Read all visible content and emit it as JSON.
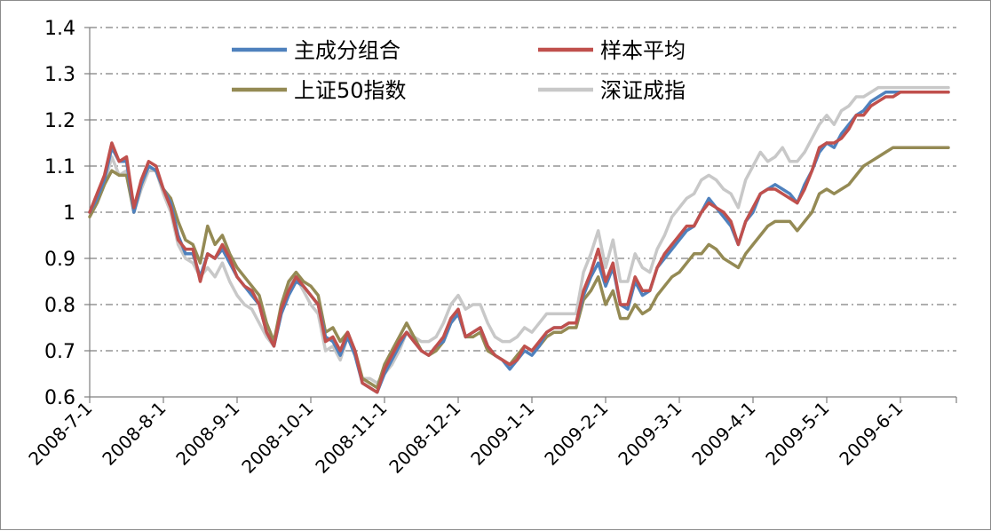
{
  "chart_data": {
    "type": "line",
    "title": "",
    "xlabel": "",
    "ylabel": "",
    "ylim": [
      0.6,
      1.4
    ],
    "yticks": [
      "0.6",
      "0.7",
      "0.8",
      "0.9",
      "1",
      "1.1",
      "1.2",
      "1.3",
      "1.4"
    ],
    "x_tick_labels": [
      "2008-7-1",
      "2008-8-1",
      "2008-9-1",
      "2008-10-1",
      "2008-11-1",
      "2008-12-1",
      "2009-1-1",
      "2009-2-1",
      "2009-3-1",
      "2009-4-1",
      "2009-5-1",
      "2009-6-1"
    ],
    "x_range": [
      0,
      11.65
    ],
    "grid": true,
    "legend_position": "top-center",
    "x": [
      0,
      0.1,
      0.2,
      0.3,
      0.4,
      0.5,
      0.6,
      0.7,
      0.8,
      0.9,
      1.0,
      1.1,
      1.2,
      1.3,
      1.4,
      1.5,
      1.6,
      1.7,
      1.8,
      1.9,
      2.0,
      2.1,
      2.2,
      2.3,
      2.4,
      2.5,
      2.6,
      2.7,
      2.8,
      2.9,
      3.0,
      3.1,
      3.2,
      3.3,
      3.4,
      3.5,
      3.6,
      3.7,
      3.8,
      3.9,
      4.0,
      4.1,
      4.2,
      4.3,
      4.4,
      4.5,
      4.6,
      4.7,
      4.8,
      4.9,
      5.0,
      5.1,
      5.2,
      5.3,
      5.4,
      5.5,
      5.6,
      5.7,
      5.8,
      5.9,
      6.0,
      6.1,
      6.2,
      6.3,
      6.4,
      6.5,
      6.6,
      6.7,
      6.8,
      6.9,
      7.0,
      7.1,
      7.2,
      7.3,
      7.4,
      7.5,
      7.6,
      7.7,
      7.8,
      7.9,
      8.0,
      8.1,
      8.2,
      8.3,
      8.4,
      8.5,
      8.6,
      8.7,
      8.8,
      8.9,
      9.0,
      9.1,
      9.2,
      9.3,
      9.4,
      9.5,
      9.6,
      9.7,
      9.8,
      9.9,
      10.0,
      10.1,
      10.2,
      10.3,
      10.4,
      10.5,
      10.6,
      10.7,
      10.8,
      10.9,
      11.0,
      11.1,
      11.2,
      11.3,
      11.4,
      11.5,
      11.6,
      11.65
    ],
    "series": [
      {
        "name": "主成分组合",
        "color": "#4f81bd",
        "values": [
          1.0,
          1.03,
          1.07,
          1.14,
          1.11,
          1.11,
          1.0,
          1.06,
          1.1,
          1.09,
          1.05,
          1.02,
          0.95,
          0.91,
          0.91,
          0.86,
          0.91,
          0.9,
          0.92,
          0.89,
          0.86,
          0.84,
          0.82,
          0.8,
          0.74,
          0.71,
          0.78,
          0.82,
          0.85,
          0.84,
          0.82,
          0.8,
          0.73,
          0.72,
          0.69,
          0.73,
          0.69,
          0.63,
          0.62,
          0.61,
          0.65,
          0.68,
          0.71,
          0.74,
          0.72,
          0.7,
          0.69,
          0.71,
          0.72,
          0.76,
          0.78,
          0.73,
          0.74,
          0.75,
          0.71,
          0.69,
          0.68,
          0.66,
          0.68,
          0.7,
          0.69,
          0.71,
          0.74,
          0.75,
          0.75,
          0.76,
          0.76,
          0.82,
          0.86,
          0.89,
          0.84,
          0.88,
          0.8,
          0.79,
          0.85,
          0.82,
          0.83,
          0.88,
          0.9,
          0.92,
          0.94,
          0.96,
          0.97,
          1.0,
          1.03,
          1.01,
          0.99,
          0.97,
          0.93,
          0.98,
          1.0,
          1.04,
          1.05,
          1.06,
          1.05,
          1.04,
          1.02,
          1.06,
          1.09,
          1.13,
          1.15,
          1.14,
          1.17,
          1.19,
          1.21,
          1.22,
          1.24,
          1.25,
          1.26,
          1.26,
          1.26,
          1.26,
          1.26,
          1.26,
          1.26,
          1.26,
          1.26,
          1.26
        ]
      },
      {
        "name": "样本平均",
        "color": "#c0504d",
        "values": [
          1.0,
          1.04,
          1.08,
          1.15,
          1.11,
          1.12,
          1.01,
          1.07,
          1.11,
          1.1,
          1.05,
          1.01,
          0.94,
          0.92,
          0.92,
          0.85,
          0.91,
          0.9,
          0.93,
          0.9,
          0.86,
          0.84,
          0.83,
          0.8,
          0.74,
          0.71,
          0.79,
          0.83,
          0.86,
          0.84,
          0.82,
          0.8,
          0.72,
          0.73,
          0.7,
          0.74,
          0.7,
          0.63,
          0.62,
          0.61,
          0.66,
          0.69,
          0.72,
          0.74,
          0.72,
          0.7,
          0.69,
          0.71,
          0.73,
          0.77,
          0.79,
          0.73,
          0.74,
          0.75,
          0.71,
          0.69,
          0.68,
          0.67,
          0.68,
          0.71,
          0.7,
          0.72,
          0.74,
          0.75,
          0.75,
          0.76,
          0.76,
          0.83,
          0.87,
          0.92,
          0.85,
          0.89,
          0.8,
          0.8,
          0.86,
          0.83,
          0.83,
          0.88,
          0.91,
          0.93,
          0.95,
          0.97,
          0.97,
          1.0,
          1.02,
          1.01,
          1.0,
          0.98,
          0.93,
          0.98,
          1.01,
          1.04,
          1.05,
          1.05,
          1.04,
          1.03,
          1.02,
          1.05,
          1.09,
          1.14,
          1.15,
          1.15,
          1.16,
          1.18,
          1.21,
          1.21,
          1.23,
          1.24,
          1.25,
          1.25,
          1.26,
          1.26,
          1.26,
          1.26,
          1.26,
          1.26,
          1.26,
          1.26
        ]
      },
      {
        "name": "上证50指数",
        "color": "#948a54",
        "values": [
          0.99,
          1.02,
          1.06,
          1.09,
          1.08,
          1.08,
          1.0,
          1.06,
          1.1,
          1.09,
          1.05,
          1.03,
          0.98,
          0.94,
          0.93,
          0.89,
          0.97,
          0.93,
          0.95,
          0.91,
          0.88,
          0.86,
          0.84,
          0.82,
          0.76,
          0.72,
          0.8,
          0.85,
          0.87,
          0.85,
          0.84,
          0.82,
          0.74,
          0.75,
          0.72,
          0.74,
          0.7,
          0.64,
          0.63,
          0.62,
          0.67,
          0.7,
          0.73,
          0.76,
          0.73,
          0.7,
          0.69,
          0.7,
          0.72,
          0.76,
          0.78,
          0.73,
          0.73,
          0.74,
          0.7,
          0.69,
          0.68,
          0.67,
          0.69,
          0.71,
          0.7,
          0.71,
          0.73,
          0.74,
          0.74,
          0.75,
          0.75,
          0.81,
          0.83,
          0.86,
          0.8,
          0.83,
          0.77,
          0.77,
          0.8,
          0.78,
          0.79,
          0.82,
          0.84,
          0.86,
          0.87,
          0.89,
          0.91,
          0.91,
          0.93,
          0.92,
          0.9,
          0.89,
          0.88,
          0.91,
          0.93,
          0.95,
          0.97,
          0.98,
          0.98,
          0.98,
          0.96,
          0.98,
          1.0,
          1.04,
          1.05,
          1.04,
          1.05,
          1.06,
          1.08,
          1.1,
          1.11,
          1.12,
          1.13,
          1.14,
          1.14,
          1.14,
          1.14,
          1.14,
          1.14,
          1.14,
          1.14,
          1.14
        ]
      },
      {
        "name": "深证成指",
        "color": "#c8c8c8",
        "values": [
          1.0,
          1.02,
          1.06,
          1.12,
          1.08,
          1.09,
          1.0,
          1.05,
          1.09,
          1.09,
          1.04,
          1.0,
          0.93,
          0.9,
          0.89,
          0.86,
          0.88,
          0.86,
          0.89,
          0.85,
          0.82,
          0.8,
          0.79,
          0.76,
          0.73,
          0.71,
          0.78,
          0.84,
          0.86,
          0.83,
          0.8,
          0.78,
          0.7,
          0.71,
          0.68,
          0.73,
          0.69,
          0.64,
          0.64,
          0.63,
          0.65,
          0.67,
          0.7,
          0.74,
          0.73,
          0.72,
          0.72,
          0.73,
          0.76,
          0.8,
          0.82,
          0.79,
          0.8,
          0.8,
          0.76,
          0.73,
          0.72,
          0.72,
          0.73,
          0.75,
          0.74,
          0.76,
          0.78,
          0.78,
          0.78,
          0.78,
          0.78,
          0.87,
          0.91,
          0.96,
          0.88,
          0.94,
          0.85,
          0.85,
          0.91,
          0.88,
          0.87,
          0.92,
          0.95,
          0.99,
          1.01,
          1.03,
          1.04,
          1.07,
          1.08,
          1.07,
          1.05,
          1.04,
          1.01,
          1.07,
          1.1,
          1.13,
          1.11,
          1.12,
          1.14,
          1.11,
          1.11,
          1.13,
          1.16,
          1.19,
          1.21,
          1.19,
          1.22,
          1.23,
          1.25,
          1.25,
          1.26,
          1.27,
          1.27,
          1.27,
          1.27,
          1.27,
          1.27,
          1.27,
          1.27,
          1.27,
          1.27,
          1.27
        ]
      }
    ]
  }
}
